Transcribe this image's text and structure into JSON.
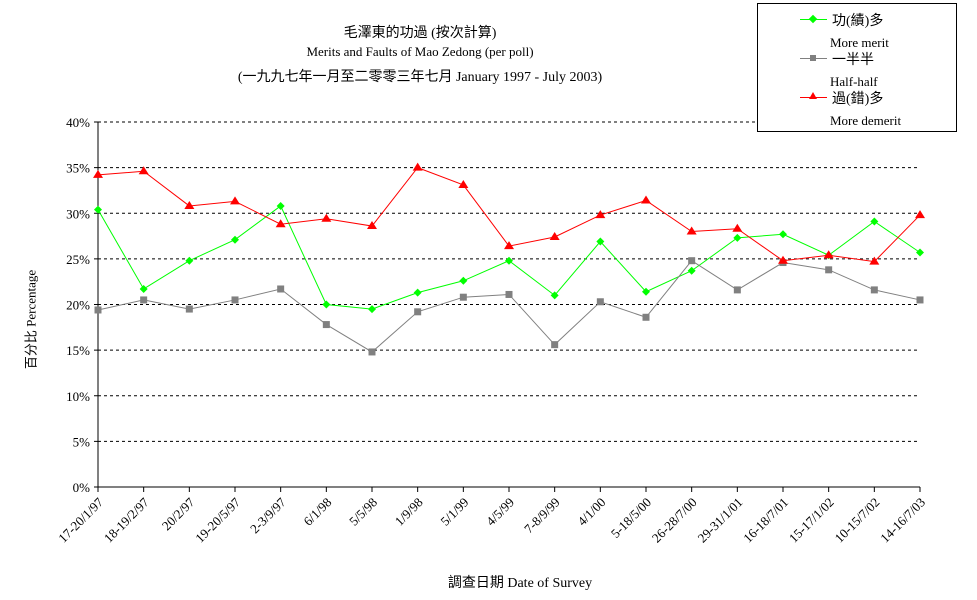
{
  "chart_data": {
    "type": "line",
    "title": "毛澤東的功過 (按次計算)",
    "subtitle": "Merits and Faults of Mao Zedong (per poll)",
    "subtitle2": "(一九九七年一月至二零零三年七月 January 1997 - July 2003)",
    "xlabel": "調查日期 Date of Survey",
    "ylabel": "百分比 Percentage",
    "ylim": [
      0,
      40
    ],
    "yticks": [
      "0%",
      "5%",
      "10%",
      "15%",
      "20%",
      "25%",
      "30%",
      "35%",
      "40%"
    ],
    "grid": true,
    "legend_position": "top-right",
    "categories": [
      "17-20/1/97",
      "18-19/2/97",
      "20/2/97",
      "19-20/5/97",
      "2-3/9/97",
      "6/1/98",
      "5/5/98",
      "1/9/98",
      "5/1/99",
      "4/5/99",
      "7-8/9/99",
      "4/1/00",
      "5-18/5/00",
      "26-28/7/00",
      "29-31/1/01",
      "16-18/7/01",
      "15-17/1/02",
      "10-15/7/02",
      "14-16/7/03"
    ],
    "series": [
      {
        "name": "功(績)多",
        "name_en": "More merit",
        "color": "#00ff00",
        "marker": "diamond",
        "values": [
          30.4,
          21.7,
          24.8,
          27.1,
          30.8,
          20.0,
          19.5,
          21.3,
          22.6,
          24.8,
          21.0,
          26.9,
          21.4,
          23.7,
          27.3,
          27.7,
          25.4,
          29.1,
          25.7
        ]
      },
      {
        "name": "一半半",
        "name_en": "Half-half",
        "color": "#808080",
        "marker": "square",
        "values": [
          19.4,
          20.5,
          19.5,
          20.5,
          21.7,
          17.8,
          14.8,
          19.2,
          20.8,
          21.1,
          15.6,
          20.3,
          18.6,
          24.8,
          21.6,
          24.6,
          23.8,
          21.6,
          20.5
        ]
      },
      {
        "name": "過(錯)多",
        "name_en": "More demerit",
        "color": "#ff0000",
        "marker": "triangle",
        "values": [
          34.2,
          34.6,
          30.8,
          31.3,
          28.8,
          29.4,
          28.6,
          35.0,
          33.1,
          26.4,
          27.4,
          29.8,
          31.4,
          28.0,
          28.3,
          24.8,
          25.4,
          24.7,
          29.8
        ]
      }
    ]
  }
}
